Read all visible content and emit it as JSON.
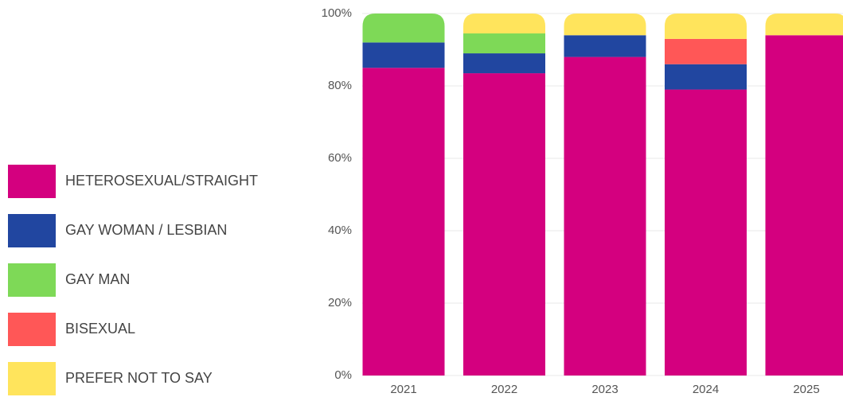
{
  "chart_data": {
    "type": "stacked_bar",
    "categories": [
      "2021",
      "2022",
      "2023",
      "2024",
      "2025"
    ],
    "series": [
      {
        "name": "HETEROSEXUAL/STRAIGHT",
        "color": "#d4007f",
        "values": [
          85,
          83.5,
          88,
          79,
          94
        ]
      },
      {
        "name": "GAY WOMAN / LESBIAN",
        "color": "#2146a0",
        "values": [
          7,
          5.5,
          6,
          7,
          0
        ]
      },
      {
        "name": "GAY MAN",
        "color": "#7ed957",
        "values": [
          8,
          5.5,
          0,
          0,
          0
        ]
      },
      {
        "name": "BISEXUAL",
        "color": "#ff5757",
        "values": [
          0,
          0,
          0,
          7,
          0
        ]
      },
      {
        "name": "PREFER NOT TO SAY",
        "color": "#ffe45c",
        "values": [
          0,
          5.5,
          6,
          7,
          6
        ]
      }
    ],
    "ylim": [
      0,
      100
    ],
    "yticks": [
      {
        "value": 0,
        "label": "0%"
      },
      {
        "value": 20,
        "label": "20%"
      },
      {
        "value": 40,
        "label": "40%"
      },
      {
        "value": 60,
        "label": "60%"
      },
      {
        "value": 80,
        "label": "80%"
      },
      {
        "value": 100,
        "label": "100%"
      }
    ],
    "grid": true,
    "legend": "left"
  }
}
